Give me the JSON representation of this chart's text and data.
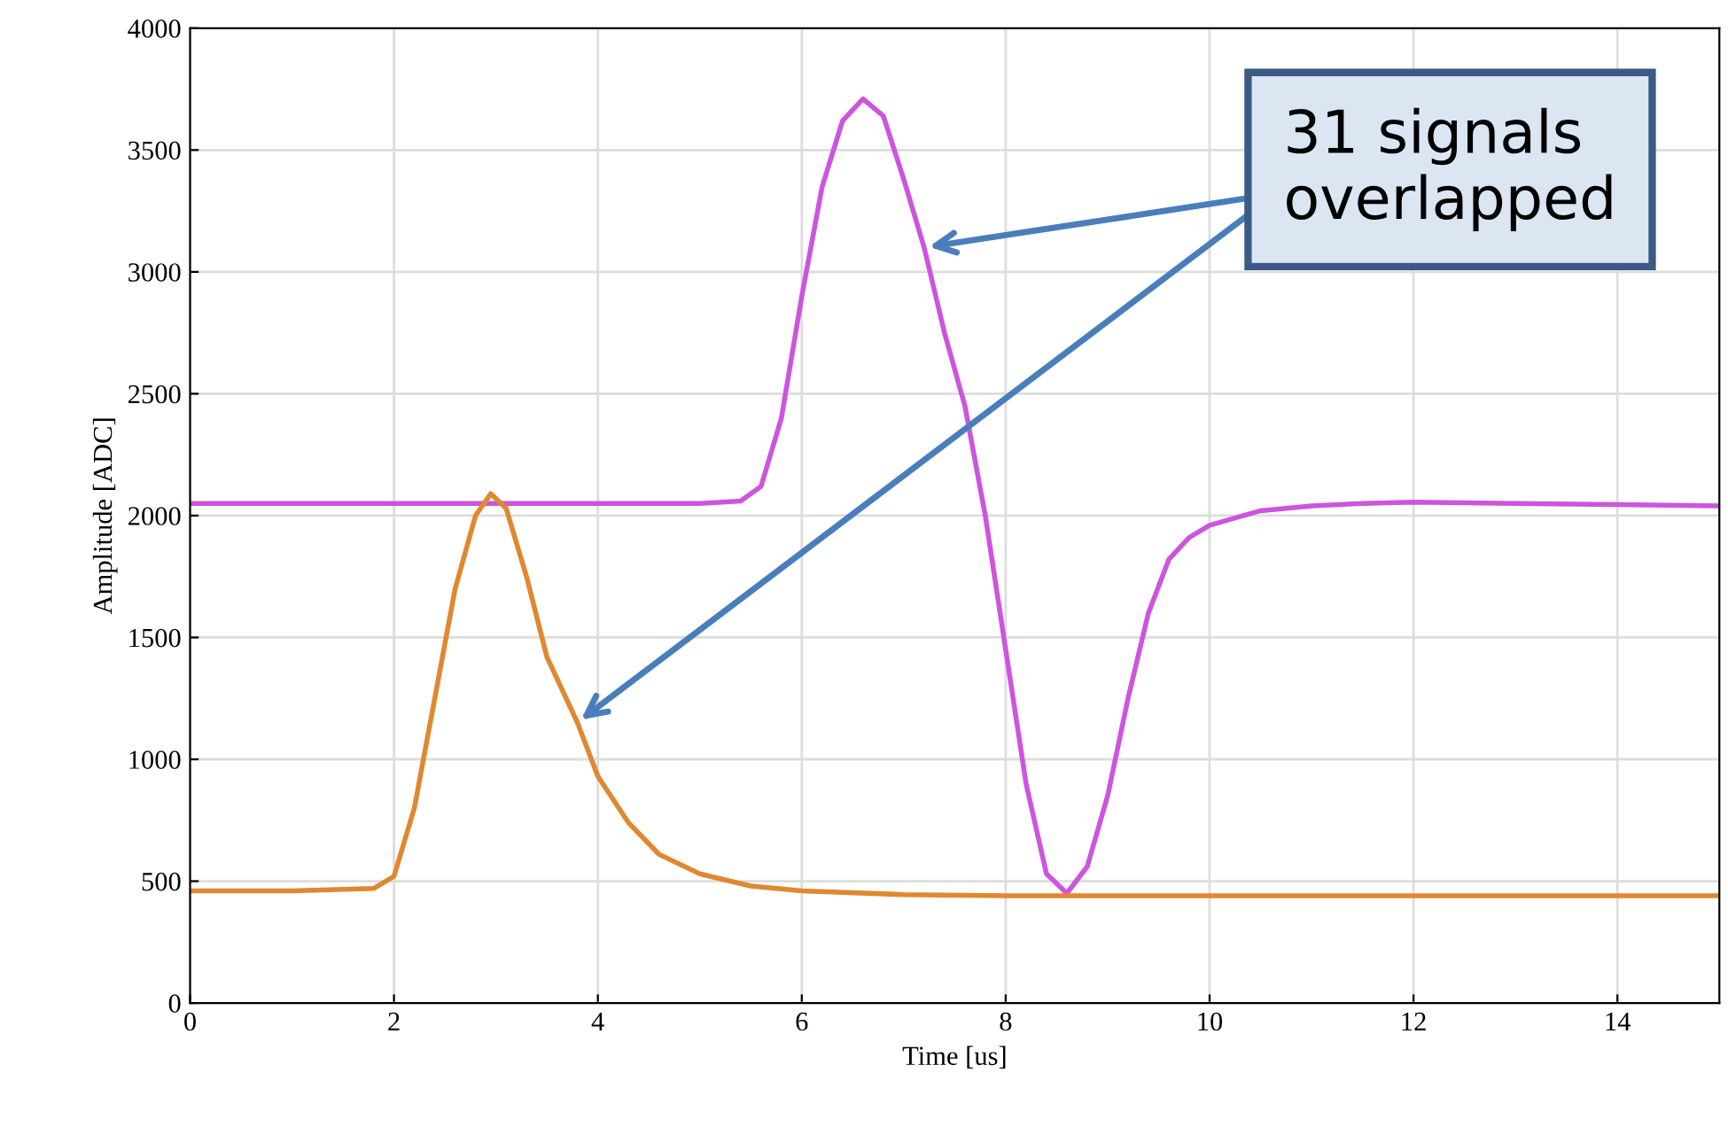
{
  "chart_data": {
    "type": "line",
    "xlabel": "Time [us]",
    "ylabel": "Amplitude [ADC]",
    "xlim": [
      0,
      15
    ],
    "xticks": [
      0,
      2,
      4,
      6,
      8,
      10,
      12,
      14
    ],
    "ylim": [
      0,
      4000
    ],
    "yticks": [
      0,
      500,
      1000,
      1500,
      2000,
      2500,
      3000,
      3500,
      4000
    ],
    "grid": true,
    "line_style": "solid",
    "series": [
      {
        "color": "#cc55dd",
        "x": [
          0,
          2,
          4,
          5,
          5.4,
          5.6,
          5.8,
          6.0,
          6.2,
          6.4,
          6.6,
          6.8,
          7.0,
          7.2,
          7.4,
          7.6,
          7.8,
          8.0,
          8.2,
          8.4,
          8.6,
          8.8,
          9.0,
          9.2,
          9.4,
          9.6,
          9.8,
          10.0,
          10.5,
          11,
          11.5,
          12,
          13,
          14,
          15
        ],
        "values": [
          2050,
          2050,
          2050,
          2050,
          2060,
          2120,
          2400,
          2900,
          3350,
          3620,
          3710,
          3640,
          3380,
          3100,
          2750,
          2450,
          2000,
          1450,
          900,
          530,
          450,
          560,
          850,
          1250,
          1600,
          1820,
          1910,
          1960,
          2020,
          2040,
          2050,
          2055,
          2050,
          2045,
          2040
        ]
      },
      {
        "color": "#e08830",
        "x": [
          0,
          1,
          1.8,
          2.0,
          2.2,
          2.4,
          2.6,
          2.8,
          2.95,
          3.1,
          3.3,
          3.5,
          3.8,
          4.0,
          4.3,
          4.6,
          5.0,
          5.5,
          6,
          7,
          8,
          10,
          12,
          15
        ],
        "values": [
          460,
          460,
          470,
          520,
          800,
          1250,
          1700,
          2000,
          2090,
          2030,
          1750,
          1420,
          1150,
          930,
          740,
          610,
          530,
          480,
          460,
          445,
          440,
          440,
          440,
          440
        ]
      }
    ],
    "annotations": [
      {
        "text": "31 signals\noverlapped",
        "x": 7.2,
        "y": 3100
      }
    ]
  }
}
